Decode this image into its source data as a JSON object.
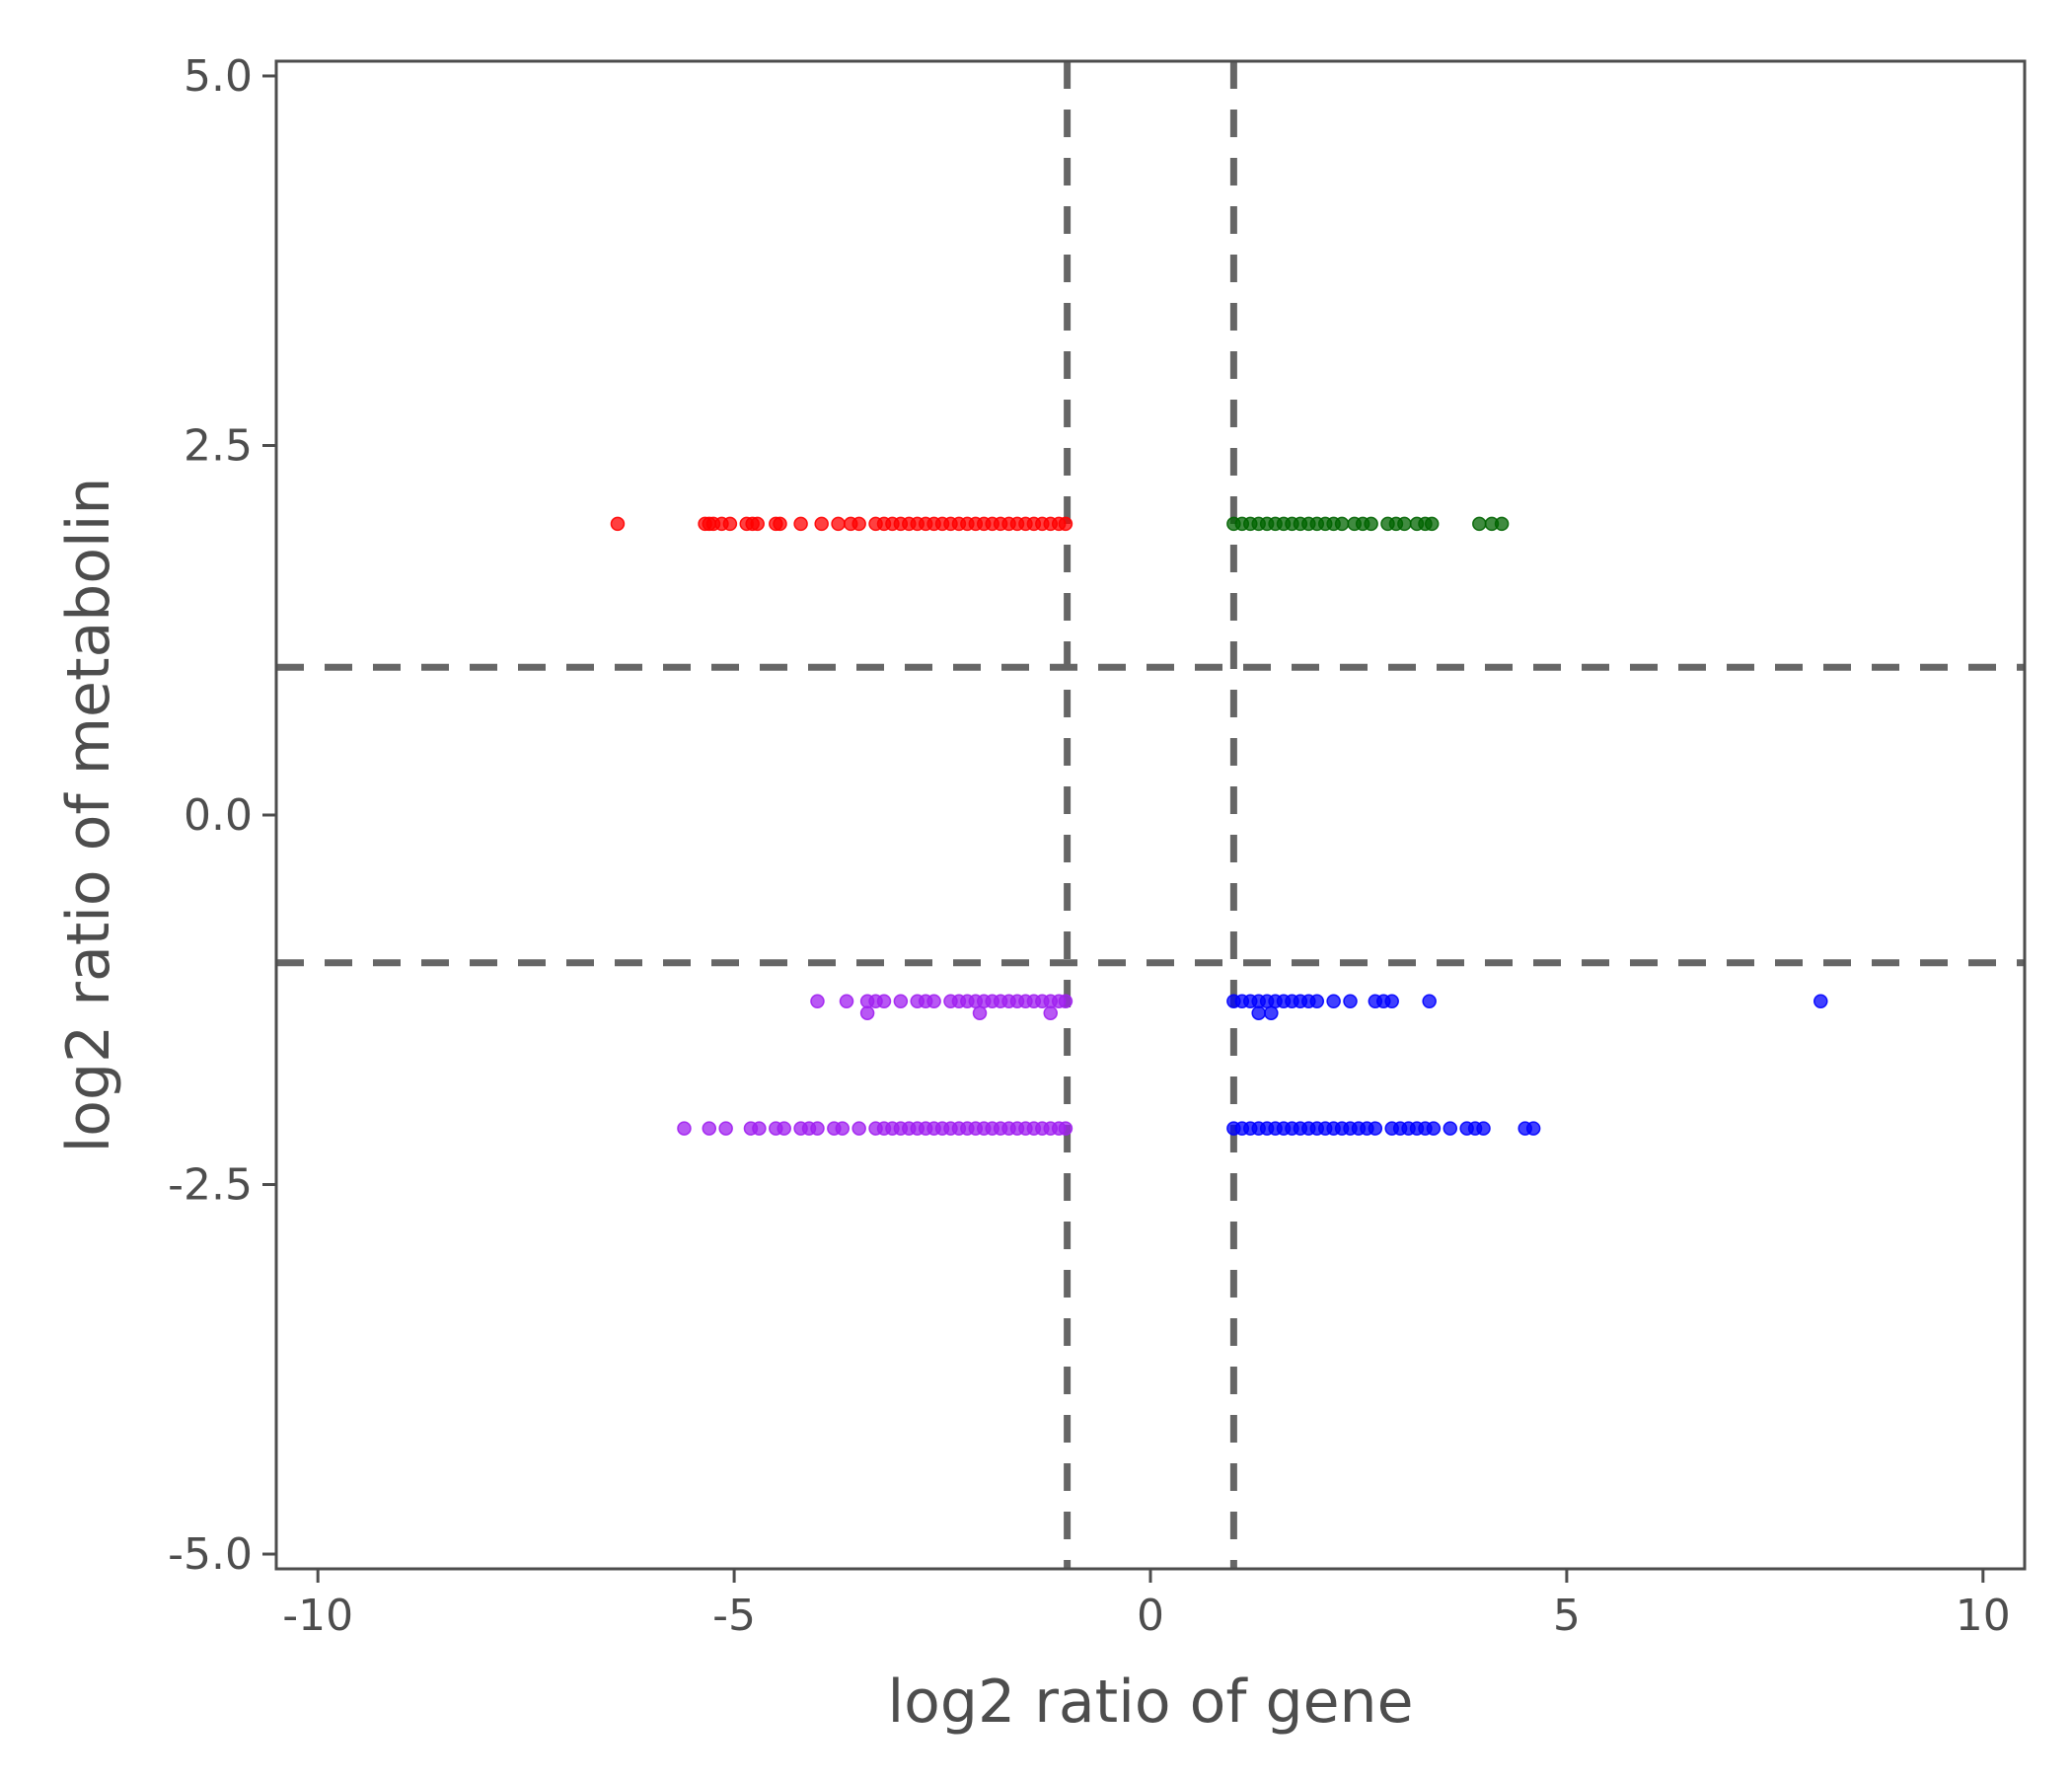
{
  "chart_data": {
    "type": "scatter",
    "title": "",
    "xlabel": "log2 ratio of gene",
    "ylabel": "log2 ratio of metabolin",
    "xlim": [
      -10.5,
      10.5
    ],
    "ylim": [
      -5.1,
      5.1
    ],
    "x_ticks": [
      -10,
      -5,
      0,
      5,
      10
    ],
    "x_tick_labels": [
      "-10",
      "-5",
      "0",
      "5",
      "10"
    ],
    "y_ticks": [
      5.0,
      2.5,
      0.0,
      -2.5,
      -5.0
    ],
    "y_tick_labels": [
      "5.0",
      "2.5",
      "0.0",
      "-2.5",
      "-5.0"
    ],
    "grid": false,
    "legend": "none",
    "reference_lines": {
      "vertical": [
        -1,
        1
      ],
      "horizontal": [
        1,
        -1
      ],
      "color": "#666666",
      "style": "dashed"
    },
    "series": [
      {
        "color": "#ff0000",
        "points": [
          [
            -6.4,
            1.97
          ],
          [
            -5.35,
            1.97
          ],
          [
            -5.3,
            1.97
          ],
          [
            -5.25,
            1.97
          ],
          [
            -5.15,
            1.97
          ],
          [
            -5.05,
            1.97
          ],
          [
            -4.85,
            1.97
          ],
          [
            -4.78,
            1.97
          ],
          [
            -4.72,
            1.97
          ],
          [
            -4.5,
            1.97
          ],
          [
            -4.45,
            1.97
          ],
          [
            -4.2,
            1.97
          ],
          [
            -3.95,
            1.97
          ],
          [
            -3.75,
            1.97
          ],
          [
            -3.6,
            1.97
          ],
          [
            -3.5,
            1.97
          ],
          [
            -3.3,
            1.97
          ],
          [
            -3.2,
            1.97
          ],
          [
            -3.1,
            1.97
          ],
          [
            -3.0,
            1.97
          ],
          [
            -2.9,
            1.97
          ],
          [
            -2.8,
            1.97
          ],
          [
            -2.7,
            1.97
          ],
          [
            -2.6,
            1.97
          ],
          [
            -2.5,
            1.97
          ],
          [
            -2.4,
            1.97
          ],
          [
            -2.3,
            1.97
          ],
          [
            -2.2,
            1.97
          ],
          [
            -2.1,
            1.97
          ],
          [
            -2.0,
            1.97
          ],
          [
            -1.9,
            1.97
          ],
          [
            -1.8,
            1.97
          ],
          [
            -1.7,
            1.97
          ],
          [
            -1.6,
            1.97
          ],
          [
            -1.5,
            1.97
          ],
          [
            -1.4,
            1.97
          ],
          [
            -1.3,
            1.97
          ],
          [
            -1.2,
            1.97
          ],
          [
            -1.1,
            1.97
          ],
          [
            -1.02,
            1.97
          ]
        ]
      },
      {
        "color": "#006400",
        "points": [
          [
            1.0,
            1.97
          ],
          [
            1.1,
            1.97
          ],
          [
            1.2,
            1.97
          ],
          [
            1.3,
            1.97
          ],
          [
            1.4,
            1.97
          ],
          [
            1.5,
            1.97
          ],
          [
            1.6,
            1.97
          ],
          [
            1.7,
            1.97
          ],
          [
            1.8,
            1.97
          ],
          [
            1.9,
            1.97
          ],
          [
            2.0,
            1.97
          ],
          [
            2.1,
            1.97
          ],
          [
            2.2,
            1.97
          ],
          [
            2.3,
            1.97
          ],
          [
            2.45,
            1.97
          ],
          [
            2.55,
            1.97
          ],
          [
            2.65,
            1.97
          ],
          [
            2.85,
            1.97
          ],
          [
            2.95,
            1.97
          ],
          [
            3.05,
            1.97
          ],
          [
            3.2,
            1.97
          ],
          [
            3.3,
            1.97
          ],
          [
            3.38,
            1.97
          ],
          [
            3.95,
            1.97
          ],
          [
            4.1,
            1.97
          ],
          [
            4.22,
            1.97
          ]
        ]
      },
      {
        "color": "#a020f0",
        "points": [
          [
            -4.0,
            -1.26
          ],
          [
            -3.65,
            -1.26
          ],
          [
            -3.4,
            -1.26
          ],
          [
            -3.3,
            -1.26
          ],
          [
            -3.2,
            -1.26
          ],
          [
            -3.0,
            -1.26
          ],
          [
            -2.8,
            -1.26
          ],
          [
            -2.7,
            -1.26
          ],
          [
            -2.6,
            -1.26
          ],
          [
            -2.4,
            -1.26
          ],
          [
            -2.3,
            -1.26
          ],
          [
            -2.2,
            -1.26
          ],
          [
            -2.1,
            -1.26
          ],
          [
            -2.0,
            -1.26
          ],
          [
            -1.9,
            -1.26
          ],
          [
            -1.8,
            -1.26
          ],
          [
            -1.7,
            -1.26
          ],
          [
            -1.6,
            -1.26
          ],
          [
            -1.5,
            -1.26
          ],
          [
            -1.4,
            -1.26
          ],
          [
            -1.3,
            -1.26
          ],
          [
            -1.2,
            -1.26
          ],
          [
            -1.1,
            -1.26
          ],
          [
            -1.02,
            -1.26
          ],
          [
            -3.4,
            -1.34
          ],
          [
            -2.05,
            -1.34
          ],
          [
            -1.2,
            -1.34
          ],
          [
            -5.6,
            -2.12
          ],
          [
            -5.3,
            -2.12
          ],
          [
            -5.1,
            -2.12
          ],
          [
            -4.8,
            -2.12
          ],
          [
            -4.7,
            -2.12
          ],
          [
            -4.5,
            -2.12
          ],
          [
            -4.4,
            -2.12
          ],
          [
            -4.2,
            -2.12
          ],
          [
            -4.1,
            -2.12
          ],
          [
            -4.0,
            -2.12
          ],
          [
            -3.8,
            -2.12
          ],
          [
            -3.7,
            -2.12
          ],
          [
            -3.5,
            -2.12
          ],
          [
            -3.3,
            -2.12
          ],
          [
            -3.2,
            -2.12
          ],
          [
            -3.1,
            -2.12
          ],
          [
            -3.0,
            -2.12
          ],
          [
            -2.9,
            -2.12
          ],
          [
            -2.8,
            -2.12
          ],
          [
            -2.7,
            -2.12
          ],
          [
            -2.6,
            -2.12
          ],
          [
            -2.5,
            -2.12
          ],
          [
            -2.4,
            -2.12
          ],
          [
            -2.3,
            -2.12
          ],
          [
            -2.2,
            -2.12
          ],
          [
            -2.1,
            -2.12
          ],
          [
            -2.0,
            -2.12
          ],
          [
            -1.9,
            -2.12
          ],
          [
            -1.8,
            -2.12
          ],
          [
            -1.7,
            -2.12
          ],
          [
            -1.6,
            -2.12
          ],
          [
            -1.5,
            -2.12
          ],
          [
            -1.4,
            -2.12
          ],
          [
            -1.3,
            -2.12
          ],
          [
            -1.2,
            -2.12
          ],
          [
            -1.1,
            -2.12
          ],
          [
            -1.02,
            -2.12
          ]
        ]
      },
      {
        "color": "#0000ff",
        "points": [
          [
            1.0,
            -1.26
          ],
          [
            1.1,
            -1.26
          ],
          [
            1.2,
            -1.26
          ],
          [
            1.3,
            -1.26
          ],
          [
            1.4,
            -1.26
          ],
          [
            1.5,
            -1.26
          ],
          [
            1.6,
            -1.26
          ],
          [
            1.7,
            -1.26
          ],
          [
            1.8,
            -1.26
          ],
          [
            1.9,
            -1.26
          ],
          [
            2.0,
            -1.26
          ],
          [
            2.2,
            -1.26
          ],
          [
            2.4,
            -1.26
          ],
          [
            2.7,
            -1.26
          ],
          [
            2.8,
            -1.26
          ],
          [
            2.9,
            -1.26
          ],
          [
            3.35,
            -1.26
          ],
          [
            8.05,
            -1.26
          ],
          [
            1.3,
            -1.34
          ],
          [
            1.45,
            -1.34
          ],
          [
            1.0,
            -2.12
          ],
          [
            1.1,
            -2.12
          ],
          [
            1.2,
            -2.12
          ],
          [
            1.3,
            -2.12
          ],
          [
            1.4,
            -2.12
          ],
          [
            1.5,
            -2.12
          ],
          [
            1.6,
            -2.12
          ],
          [
            1.7,
            -2.12
          ],
          [
            1.8,
            -2.12
          ],
          [
            1.9,
            -2.12
          ],
          [
            2.0,
            -2.12
          ],
          [
            2.1,
            -2.12
          ],
          [
            2.2,
            -2.12
          ],
          [
            2.3,
            -2.12
          ],
          [
            2.4,
            -2.12
          ],
          [
            2.5,
            -2.12
          ],
          [
            2.6,
            -2.12
          ],
          [
            2.7,
            -2.12
          ],
          [
            2.9,
            -2.12
          ],
          [
            3.0,
            -2.12
          ],
          [
            3.1,
            -2.12
          ],
          [
            3.2,
            -2.12
          ],
          [
            3.3,
            -2.12
          ],
          [
            3.4,
            -2.12
          ],
          [
            3.6,
            -2.12
          ],
          [
            3.8,
            -2.12
          ],
          [
            3.9,
            -2.12
          ],
          [
            4.0,
            -2.12
          ],
          [
            4.5,
            -2.12
          ],
          [
            4.6,
            -2.12
          ]
        ]
      }
    ]
  }
}
